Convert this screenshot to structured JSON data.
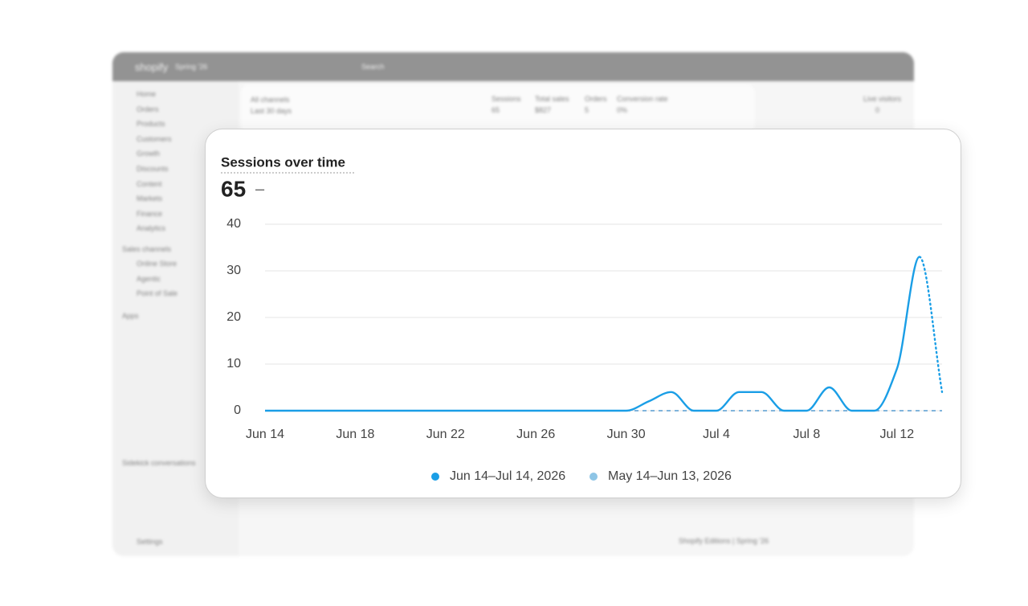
{
  "admin": {
    "brand": "shopify",
    "edition": "Spring '26",
    "search": "Search",
    "nav": [
      "Home",
      "Orders",
      "Products",
      "Customers",
      "Growth",
      "Discounts",
      "Content",
      "Markets",
      "Finance",
      "Analytics"
    ],
    "sales_channels_label": "Sales channels",
    "channels": [
      "Online Store",
      "Agentic",
      "Point of Sale"
    ],
    "apps_label": "Apps",
    "sidekick_label": "Sidekick conversations",
    "settings": "Settings",
    "filter_label": "All channels",
    "range": "Last 30 days",
    "metrics": [
      {
        "label": "Sessions",
        "value": "65"
      },
      {
        "label": "Total sales",
        "value": "$827"
      },
      {
        "label": "Orders",
        "value": "5"
      },
      {
        "label": "Conversion rate",
        "value": "0%"
      }
    ],
    "live_label": "Live visitors",
    "live_value": "0",
    "editions": "Shopify Editions | Spring '26"
  },
  "chart_data": {
    "type": "line",
    "title": "Sessions over time",
    "total": 65,
    "total_change": "–",
    "categories": [
      "Jun 14",
      null,
      null,
      null,
      "Jun 18",
      null,
      null,
      null,
      "Jun 22",
      null,
      null,
      null,
      "Jun 26",
      null,
      null,
      null,
      "Jun 30",
      null,
      null,
      null,
      "Jul 4",
      null,
      null,
      null,
      "Jul 8",
      null,
      null,
      null,
      "Jul 12",
      null,
      null
    ],
    "series": [
      {
        "name": "Jun 14–Jul 14, 2026",
        "color": "#1a9ee6",
        "line_style": "solid",
        "partial_last": true,
        "values": [
          0,
          0,
          0,
          0,
          0,
          0,
          0,
          0,
          0,
          0,
          0,
          0,
          0,
          0,
          0,
          0,
          0,
          2,
          4,
          0,
          0,
          4,
          4,
          0,
          0,
          5,
          0,
          0,
          9,
          33,
          4
        ]
      },
      {
        "name": "May 14–Jun 13, 2026",
        "color": "#8ec5e6",
        "line_style": "dashed",
        "values": [
          0,
          0,
          0,
          0,
          0,
          0,
          0,
          0,
          0,
          0,
          0,
          0,
          0,
          0,
          0,
          0,
          0,
          0,
          0,
          0,
          0,
          0,
          0,
          0,
          0,
          0,
          0,
          0,
          0,
          0,
          0
        ]
      }
    ],
    "ylim": [
      0,
      40
    ],
    "yticks": [
      0,
      10,
      20,
      30,
      40
    ],
    "grid": true
  }
}
